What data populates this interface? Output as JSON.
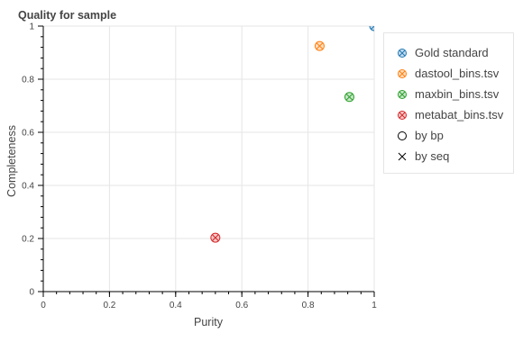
{
  "chart_data": {
    "type": "scatter",
    "title": "Quality for sample",
    "xlabel": "Purity",
    "ylabel": "Completeness",
    "xlim": [
      0,
      1
    ],
    "ylim": [
      0,
      1
    ],
    "xticks": [
      "0",
      "0.2",
      "0.4",
      "0.6",
      "0.8",
      "1"
    ],
    "yticks": [
      "0",
      "0.2",
      "0.4",
      "0.6",
      "0.8",
      "1"
    ],
    "grid": true,
    "legend_position": "right",
    "series": [
      {
        "name": "Gold standard",
        "color": "#1f77b4",
        "markers": [
          "bp",
          "seq"
        ],
        "points": [
          {
            "x": 1.0,
            "y": 1.0
          }
        ]
      },
      {
        "name": "dastool_bins.tsv",
        "color": "#ff7f0e",
        "markers": [
          "bp",
          "seq"
        ],
        "points": [
          {
            "x": 0.835,
            "y": 0.925
          }
        ]
      },
      {
        "name": "maxbin_bins.tsv",
        "color": "#2ca02c",
        "markers": [
          "bp",
          "seq"
        ],
        "points": [
          {
            "x": 0.925,
            "y": 0.733
          }
        ]
      },
      {
        "name": "metabat_bins.tsv",
        "color": "#d62728",
        "markers": [
          "bp",
          "seq"
        ],
        "points": [
          {
            "x": 0.52,
            "y": 0.203
          }
        ]
      }
    ],
    "marker_legend": [
      {
        "name": "by bp",
        "marker": "circle"
      },
      {
        "name": "by seq",
        "marker": "x"
      }
    ]
  }
}
